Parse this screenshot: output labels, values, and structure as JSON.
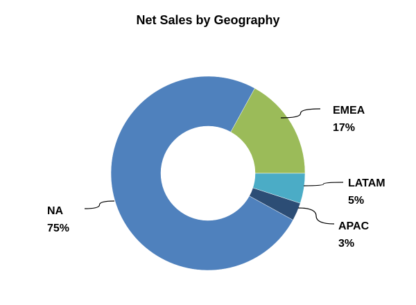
{
  "chart_data": {
    "type": "pie",
    "title": "Net Sales by Geography",
    "categories": [
      "EMEA",
      "LATAM",
      "APAC",
      "NA"
    ],
    "values": [
      17,
      5,
      3,
      75
    ],
    "value_labels": [
      "17%",
      "5%",
      "3%",
      "75%"
    ],
    "colors": [
      "#9bbb59",
      "#4bacc6",
      "#2c4d75",
      "#4f81bd"
    ]
  }
}
